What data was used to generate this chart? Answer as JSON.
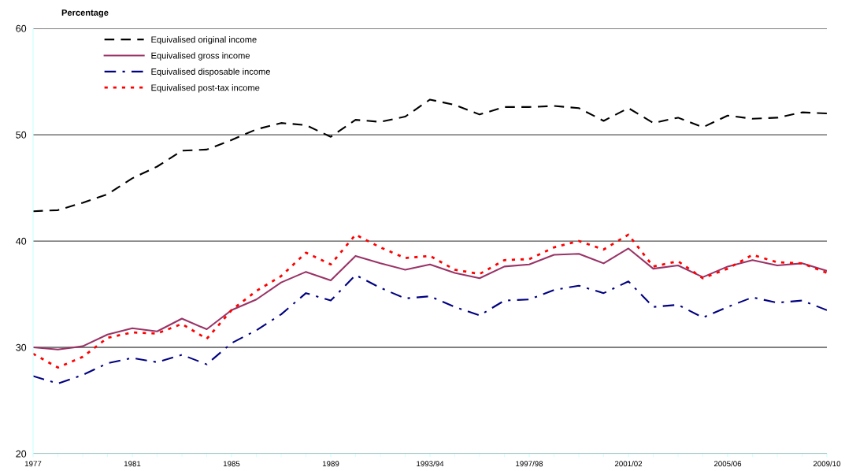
{
  "chart_data": {
    "type": "line",
    "ylabel": "Percentage",
    "categories": [
      "1977",
      null,
      null,
      null,
      "1981",
      null,
      null,
      null,
      "1985",
      null,
      null,
      null,
      "1989",
      null,
      null,
      null,
      "1993/94",
      null,
      null,
      null,
      "1997/98",
      null,
      null,
      null,
      "2001/02",
      null,
      null,
      null,
      "2005/06",
      null,
      null,
      null,
      "2009/10"
    ],
    "series": [
      {
        "name": "Equivalised original income",
        "color": "#000000",
        "line_style": "dashed",
        "values": [
          42.8,
          42.9,
          43.6,
          44.4,
          45.9,
          47.0,
          48.5,
          48.6,
          49.5,
          50.5,
          51.1,
          50.9,
          49.8,
          51.4,
          51.2,
          51.7,
          53.3,
          52.8,
          51.9,
          52.6,
          52.6,
          52.7,
          52.5,
          51.3,
          52.5,
          51.1,
          51.6,
          50.7,
          51.8,
          51.5,
          51.6,
          52.1,
          52.0
        ]
      },
      {
        "name": "Equivalised gross income",
        "color": "#993366",
        "line_style": "solid",
        "values": [
          30.0,
          29.8,
          30.1,
          31.2,
          31.8,
          31.5,
          32.7,
          31.7,
          33.5,
          34.5,
          36.1,
          37.1,
          36.3,
          38.6,
          37.9,
          37.3,
          37.8,
          37.0,
          36.5,
          37.6,
          37.8,
          38.7,
          38.8,
          37.9,
          39.3,
          37.4,
          37.7,
          36.6,
          37.6,
          38.2,
          37.7,
          37.9,
          37.2
        ]
      },
      {
        "name": "Equivalised disposable income",
        "color": "#000080",
        "line_style": "dashdot",
        "values": [
          27.3,
          26.6,
          27.4,
          28.5,
          29.0,
          28.6,
          29.3,
          28.4,
          30.4,
          31.6,
          33.1,
          35.1,
          34.4,
          36.8,
          35.6,
          34.6,
          34.8,
          33.8,
          33.0,
          34.4,
          34.5,
          35.4,
          35.8,
          35.1,
          36.2,
          33.8,
          34.0,
          32.8,
          33.8,
          34.7,
          34.2,
          34.4,
          33.5
        ]
      },
      {
        "name": "Equivalised post-tax income",
        "color": "#ff0000",
        "line_style": "dotted",
        "values": [
          29.4,
          28.1,
          29.1,
          30.9,
          31.4,
          31.3,
          32.2,
          30.8,
          33.5,
          35.3,
          36.7,
          38.9,
          37.8,
          40.6,
          39.4,
          38.4,
          38.6,
          37.3,
          36.9,
          38.2,
          38.3,
          39.4,
          40.0,
          39.2,
          40.6,
          37.6,
          38.1,
          36.5,
          37.4,
          38.7,
          38.0,
          37.9,
          37.0
        ]
      }
    ],
    "ylim": [
      20,
      60
    ],
    "yticks": [
      20,
      30,
      40,
      50,
      60
    ],
    "grid": "y",
    "legend": "top left",
    "marker": "none"
  }
}
